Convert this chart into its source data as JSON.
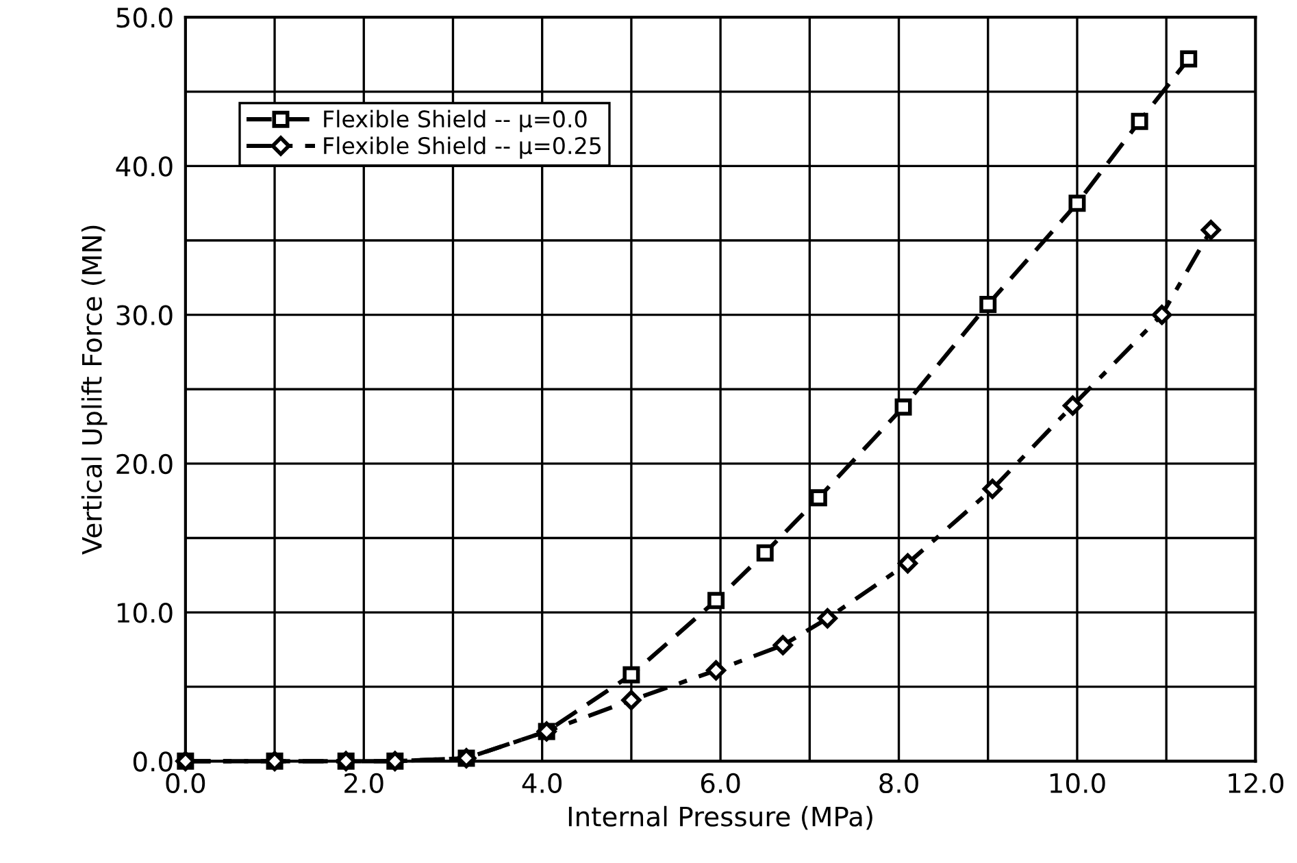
{
  "chart_data": {
    "type": "line",
    "xlabel": "Internal Pressure (MPa)",
    "ylabel": "Vertical Uplift Force (MN)",
    "xlim": [
      0,
      12
    ],
    "ylim": [
      0,
      50
    ],
    "xticks": [
      {
        "value": 0,
        "label": "0.0"
      },
      {
        "value": 1,
        "label": null
      },
      {
        "value": 2,
        "label": "2.0"
      },
      {
        "value": 3,
        "label": null
      },
      {
        "value": 4,
        "label": "4.0"
      },
      {
        "value": 5,
        "label": null
      },
      {
        "value": 6,
        "label": "6.0"
      },
      {
        "value": 7,
        "label": null
      },
      {
        "value": 8,
        "label": "8.0"
      },
      {
        "value": 9,
        "label": null
      },
      {
        "value": 10,
        "label": "10.0"
      },
      {
        "value": 11,
        "label": null
      },
      {
        "value": 12,
        "label": "12.0"
      }
    ],
    "yticks": [
      {
        "value": 0,
        "label": "0.0"
      },
      {
        "value": 5,
        "label": null
      },
      {
        "value": 10,
        "label": "10.0"
      },
      {
        "value": 15,
        "label": null
      },
      {
        "value": 20,
        "label": "20.0"
      },
      {
        "value": 25,
        "label": null
      },
      {
        "value": 30,
        "label": "30.0"
      },
      {
        "value": 35,
        "label": null
      },
      {
        "value": 40,
        "label": "40.0"
      },
      {
        "value": 45,
        "label": null
      },
      {
        "value": 50,
        "label": "50.0"
      }
    ],
    "grid": true,
    "legend": "top left",
    "series": [
      {
        "name": "Flexible Shield -- μ=0.0",
        "color": "#000000",
        "marker": "square",
        "line_style": "dashed",
        "x": [
          0,
          1.0,
          1.8,
          2.35,
          3.15,
          4.05,
          5.0,
          5.95,
          6.5,
          7.1,
          8.05,
          9.0,
          10.0,
          10.7,
          11.25
        ],
        "values": [
          0,
          0,
          0,
          0,
          0.2,
          2,
          5.8,
          10.8,
          14,
          17.7,
          23.8,
          30.7,
          37.5,
          43,
          47.2
        ]
      },
      {
        "name": "Flexible Shield -- μ=0.25",
        "color": "#000000",
        "marker": "diamond",
        "line_style": "dashed",
        "x": [
          0,
          1.0,
          1.8,
          2.35,
          3.15,
          4.05,
          5.0,
          5.95,
          6.7,
          7.2,
          8.1,
          9.05,
          9.95,
          10.95,
          11.5
        ],
        "values": [
          0,
          0,
          0,
          0,
          0.2,
          2,
          4.1,
          6.1,
          7.8,
          9.6,
          13.3,
          18.3,
          23.9,
          30.0,
          35.7
        ]
      }
    ]
  }
}
